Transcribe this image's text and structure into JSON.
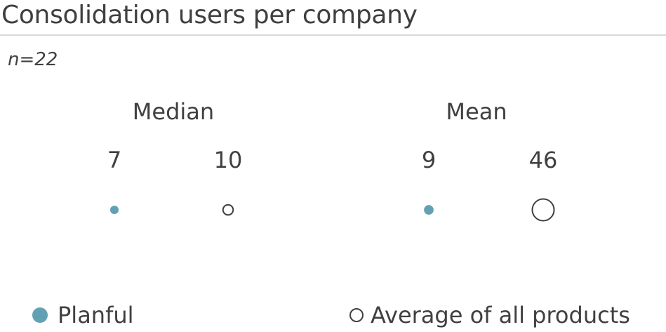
{
  "chart_data": {
    "type": "scatter",
    "title": "Consolidation users per company",
    "sample_size": "n=22",
    "groups": [
      {
        "label": "Median",
        "points": [
          {
            "series": "Planful",
            "value": 7,
            "label": "7"
          },
          {
            "series": "Average of all products",
            "value": 10,
            "label": "10"
          }
        ]
      },
      {
        "label": "Mean",
        "points": [
          {
            "series": "Planful",
            "value": 9,
            "label": "9"
          },
          {
            "series": "Average of all products",
            "value": 46,
            "label": "46"
          }
        ]
      }
    ],
    "series": [
      {
        "name": "Planful",
        "color": "#64a0b4",
        "marker": "filled-circle"
      },
      {
        "name": "Average of all products",
        "color": "#404040",
        "marker": "hollow-circle"
      }
    ],
    "marker_size_encodes": "value",
    "legend_position": "bottom",
    "grid": false
  }
}
